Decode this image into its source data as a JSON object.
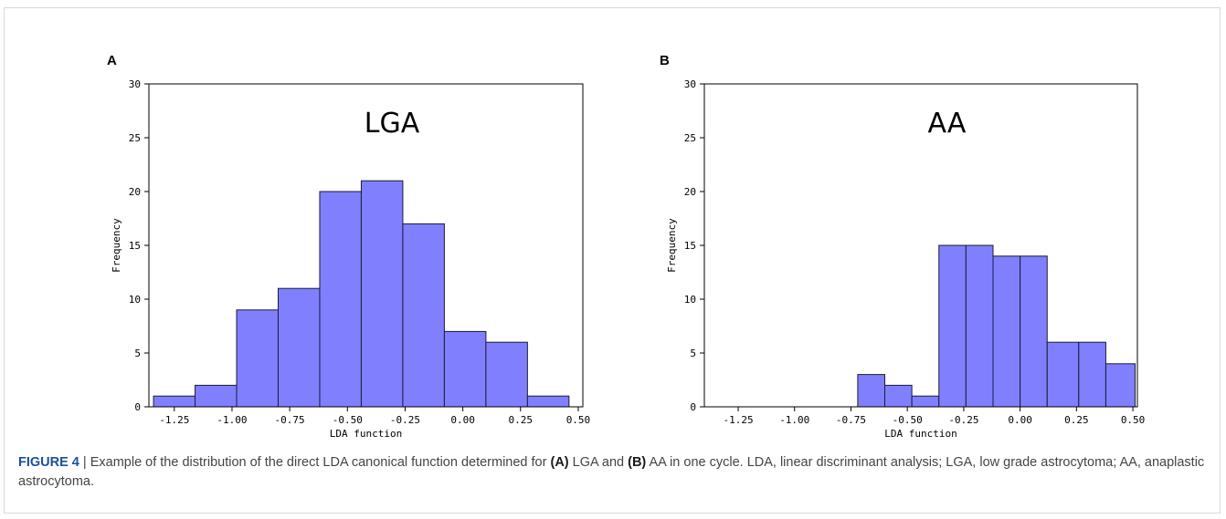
{
  "panels": [
    {
      "label": "A"
    },
    {
      "label": "B"
    }
  ],
  "caption": {
    "figure_number": "FIGURE 4",
    "separator": "|",
    "parts": [
      {
        "text": " Example of the distribution of the direct LDA canonical function determined for ",
        "bold": false
      },
      {
        "text": "(A)",
        "bold": true
      },
      {
        "text": " LGA and ",
        "bold": false
      },
      {
        "text": "(B)",
        "bold": true
      },
      {
        "text": " AA in one cycle. LDA, linear discriminant analysis; LGA, low grade astrocytoma; AA, anaplastic astrocytoma.",
        "bold": false
      }
    ]
  },
  "colors": {
    "bar_fill": "#8080ff",
    "bar_edge": "#1a1a3a",
    "axis": "#000000"
  },
  "chart_data": [
    {
      "type": "bar",
      "title": "LGA",
      "xlabel": "LDA function",
      "ylabel": "Frequency",
      "xlim": [
        -1.36,
        0.52
      ],
      "ylim": [
        0,
        30
      ],
      "xticks": [
        -1.25,
        -1.0,
        -0.75,
        -0.5,
        -0.25,
        0.0,
        0.25,
        0.5
      ],
      "xtick_labels": [
        "-1.25",
        "-1.00",
        "-0.75",
        "-0.50",
        "-0.25",
        "0.00",
        "0.25",
        "0.50"
      ],
      "yticks": [
        0,
        5,
        10,
        15,
        20,
        25,
        30
      ],
      "bin_edges": [
        -1.34,
        -1.16,
        -0.98,
        -0.8,
        -0.62,
        -0.44,
        -0.26,
        -0.08,
        0.1,
        0.28,
        0.46
      ],
      "values": [
        1,
        2,
        9,
        11,
        20,
        21,
        17,
        7,
        6,
        1
      ],
      "grid": false
    },
    {
      "type": "bar",
      "title": "AA",
      "xlabel": "LDA function",
      "ylabel": "Frequency",
      "xlim": [
        -1.4,
        0.52
      ],
      "ylim": [
        0,
        30
      ],
      "xticks": [
        -1.25,
        -1.0,
        -0.75,
        -0.5,
        -0.25,
        0.0,
        0.25,
        0.5
      ],
      "xtick_labels": [
        "-1.25",
        "-1.00",
        "-0.75",
        "-0.50",
        "-0.25",
        "0.00",
        "0.25",
        "0.50"
      ],
      "yticks": [
        0,
        5,
        10,
        15,
        20,
        25,
        30
      ],
      "bin_edges": [
        -0.72,
        -0.6,
        -0.48,
        -0.36,
        -0.24,
        -0.12,
        0.0,
        0.12,
        0.26,
        0.38,
        0.51
      ],
      "values": [
        3,
        2,
        1,
        15,
        15,
        14,
        14,
        6,
        6,
        4
      ],
      "grid": false
    }
  ]
}
